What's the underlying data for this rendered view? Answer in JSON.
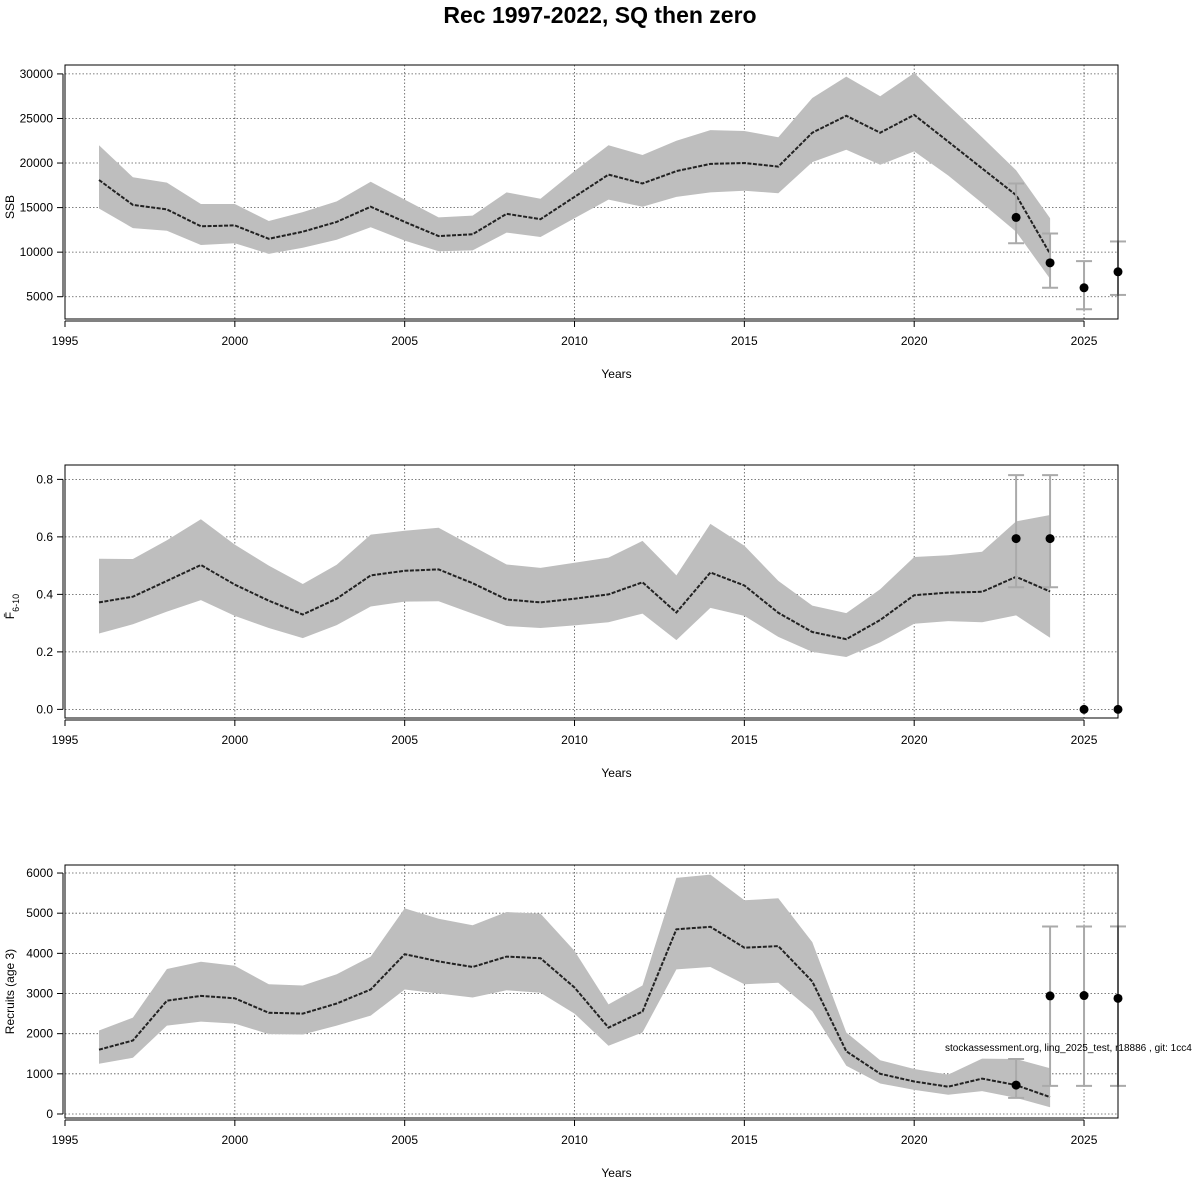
{
  "title": "Rec 1997-2022, SQ then zero",
  "watermark": "stockassessment.org, ling_2025_test, r18886 , git: 1cc4",
  "colors": {
    "band": "#bebebe",
    "line": "#222222",
    "grid": "#555555",
    "errorbar": "#aaaaaa",
    "point": "#000000"
  },
  "chart_data": [
    {
      "type": "line",
      "xlabel": "Years",
      "ylabel": "SSB",
      "xlim": [
        1995,
        2026
      ],
      "ylim": [
        2500,
        31000
      ],
      "xticks": [
        1995,
        2000,
        2005,
        2010,
        2015,
        2020,
        2025
      ],
      "yticks": [
        5000,
        10000,
        15000,
        20000,
        25000,
        30000
      ],
      "grid": true,
      "estimate": {
        "x": [
          1996,
          1997,
          1998,
          1999,
          2000,
          2001,
          2002,
          2003,
          2004,
          2005,
          2006,
          2007,
          2008,
          2009,
          2010,
          2011,
          2012,
          2013,
          2014,
          2015,
          2016,
          2017,
          2018,
          2019,
          2020,
          2021,
          2022,
          2023,
          2024
        ],
        "y": [
          18100,
          15300,
          14800,
          12900,
          13000,
          11500,
          12300,
          13400,
          15100,
          13400,
          11800,
          12000,
          14300,
          13700,
          16200,
          18700,
          17700,
          19100,
          19900,
          20000,
          19600,
          23400,
          25300,
          23400,
          25400,
          22400,
          19400,
          16400,
          9800
        ],
        "lower": [
          14900,
          12700,
          12400,
          10800,
          11000,
          9800,
          10500,
          11400,
          12800,
          11300,
          10100,
          10200,
          12200,
          11700,
          13800,
          15900,
          15100,
          16200,
          16700,
          16900,
          16600,
          20100,
          21500,
          19800,
          21300,
          18600,
          15500,
          12300,
          7000
        ],
        "upper": [
          22000,
          18400,
          17800,
          15400,
          15400,
          13500,
          14500,
          15700,
          17900,
          15900,
          13900,
          14100,
          16700,
          16000,
          19100,
          22000,
          20900,
          22500,
          23700,
          23600,
          22900,
          27300,
          29700,
          27500,
          30100,
          26500,
          22900,
          19200,
          13800
        ]
      },
      "forecast": {
        "x": [
          2023,
          2024,
          2025,
          2026
        ],
        "y": [
          13900,
          8800,
          6000,
          7800
        ],
        "lower": [
          11000,
          6000,
          3600,
          5200
        ],
        "upper": [
          17700,
          12100,
          9000,
          11200
        ]
      }
    },
    {
      "type": "line",
      "xlabel": "Years",
      "ylabel": "F̄",
      "ylabel_sub": "6-10",
      "xlim": [
        1995,
        2026
      ],
      "ylim": [
        -0.03,
        0.85
      ],
      "xticks": [
        1995,
        2000,
        2005,
        2010,
        2015,
        2020,
        2025
      ],
      "yticks": [
        0.0,
        0.2,
        0.4,
        0.6,
        0.8
      ],
      "ytick_labels": [
        "0.0",
        "0.2",
        "0.4",
        "0.6",
        "0.8"
      ],
      "grid": true,
      "estimate": {
        "x": [
          1996,
          1997,
          1998,
          1999,
          2000,
          2001,
          2002,
          2003,
          2004,
          2005,
          2006,
          2007,
          2008,
          2009,
          2010,
          2011,
          2012,
          2013,
          2014,
          2015,
          2016,
          2017,
          2018,
          2019,
          2020,
          2021,
          2022,
          2023,
          2024
        ],
        "y": [
          0.372,
          0.392,
          0.447,
          0.502,
          0.434,
          0.378,
          0.33,
          0.385,
          0.466,
          0.482,
          0.487,
          0.439,
          0.382,
          0.372,
          0.385,
          0.4,
          0.442,
          0.337,
          0.476,
          0.431,
          0.336,
          0.269,
          0.244,
          0.311,
          0.397,
          0.406,
          0.409,
          0.461,
          0.41
        ],
        "lower": [
          0.264,
          0.296,
          0.34,
          0.38,
          0.325,
          0.283,
          0.248,
          0.293,
          0.358,
          0.375,
          0.376,
          0.333,
          0.29,
          0.283,
          0.292,
          0.303,
          0.333,
          0.241,
          0.353,
          0.325,
          0.252,
          0.2,
          0.182,
          0.233,
          0.298,
          0.307,
          0.303,
          0.327,
          0.249
        ],
        "upper": [
          0.524,
          0.523,
          0.588,
          0.661,
          0.573,
          0.5,
          0.436,
          0.503,
          0.608,
          0.621,
          0.632,
          0.568,
          0.504,
          0.492,
          0.51,
          0.528,
          0.586,
          0.466,
          0.645,
          0.569,
          0.447,
          0.361,
          0.335,
          0.418,
          0.53,
          0.536,
          0.548,
          0.654,
          0.676
        ]
      },
      "forecast": {
        "x": [
          2023,
          2024,
          2025,
          2026
        ],
        "y": [
          0.594,
          0.594,
          0.0,
          0.0
        ],
        "lower": [
          0.425,
          0.425,
          null,
          null
        ],
        "upper": [
          0.815,
          0.815,
          null,
          null
        ]
      }
    },
    {
      "type": "line",
      "xlabel": "Years",
      "ylabel": "Recruits (age 3)",
      "xlim": [
        1995,
        2026
      ],
      "ylim": [
        -100,
        6200
      ],
      "xticks": [
        1995,
        2000,
        2005,
        2010,
        2015,
        2020,
        2025
      ],
      "yticks": [
        0,
        1000,
        2000,
        3000,
        4000,
        5000,
        6000
      ],
      "grid": true,
      "estimate": {
        "x": [
          1996,
          1997,
          1998,
          1999,
          2000,
          2001,
          2002,
          2003,
          2004,
          2005,
          2006,
          2007,
          2008,
          2009,
          2010,
          2011,
          2012,
          2013,
          2014,
          2015,
          2016,
          2017,
          2018,
          2019,
          2020,
          2021,
          2022,
          2023,
          2024
        ],
        "y": [
          1600,
          1830,
          2820,
          2940,
          2880,
          2520,
          2500,
          2750,
          3100,
          3980,
          3800,
          3660,
          3920,
          3880,
          3150,
          2150,
          2550,
          4600,
          4660,
          4140,
          4180,
          3300,
          1560,
          1000,
          810,
          680,
          880,
          720,
          420
        ],
        "lower": [
          1250,
          1400,
          2200,
          2300,
          2250,
          1990,
          1980,
          2200,
          2450,
          3100,
          3000,
          2900,
          3080,
          3020,
          2500,
          1700,
          2030,
          3600,
          3660,
          3230,
          3270,
          2560,
          1200,
          760,
          600,
          480,
          570,
          400,
          170
        ],
        "upper": [
          2080,
          2400,
          3610,
          3790,
          3690,
          3230,
          3200,
          3480,
          3920,
          5120,
          4860,
          4700,
          5030,
          4990,
          4060,
          2730,
          3200,
          5880,
          5960,
          5320,
          5370,
          4280,
          2030,
          1340,
          1120,
          980,
          1380,
          1370,
          1140
        ]
      },
      "forecast": {
        "x": [
          2023,
          2024,
          2025,
          2026
        ],
        "y": [
          720,
          2940,
          2950,
          2880
        ],
        "lower": [
          400,
          700,
          700,
          700
        ],
        "upper": [
          1370,
          4670,
          4670,
          4670
        ]
      }
    }
  ]
}
